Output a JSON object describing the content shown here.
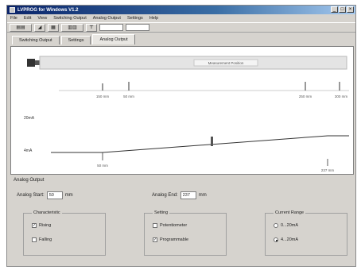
{
  "window": {
    "title": "LVPROG for Windows V1.2"
  },
  "menu": [
    "File",
    "Edit",
    "View",
    "Switching Output",
    "Analog Output",
    "Settings",
    "Help"
  ],
  "toolbar": {
    "buttons": [
      "sensor-icon",
      "chart-icon",
      "grid-icon",
      "table-icon",
      "ruler-icon"
    ]
  },
  "tabs": [
    {
      "label": "Switching Output",
      "active": false
    },
    {
      "label": "Settings",
      "active": false
    },
    {
      "label": "Analog Output",
      "active": true
    }
  ],
  "graph": {
    "sensor_label": "Measurement Position",
    "top_ticks": [
      "50 mm",
      "150 mm"
    ],
    "right_ticks": [
      "250 mm",
      "300 mm"
    ],
    "y_labels": [
      "20mA",
      "4mA"
    ],
    "line_points": [
      {
        "label": "50 mm"
      },
      {
        "label": "237 mm"
      }
    ]
  },
  "analog_output": {
    "title": "Analog Output",
    "start_label": "Analog Start:",
    "start_value": "50",
    "start_unit": "mm",
    "end_label": "Analog End:",
    "end_value": "237",
    "end_unit": "mm",
    "characteristic": {
      "label": "Characteristic",
      "options": [
        {
          "label": "Rising",
          "checked": true
        },
        {
          "label": "Falling",
          "checked": false
        }
      ]
    },
    "setting": {
      "label": "Setting",
      "options": [
        {
          "label": "Potentiometer",
          "checked": false
        },
        {
          "label": "Programmable",
          "checked": true
        }
      ]
    },
    "current_range": {
      "label": "Current Range",
      "options": [
        {
          "label": "0...20mA",
          "checked": false
        },
        {
          "label": "4...20mA",
          "checked": true
        }
      ]
    }
  }
}
